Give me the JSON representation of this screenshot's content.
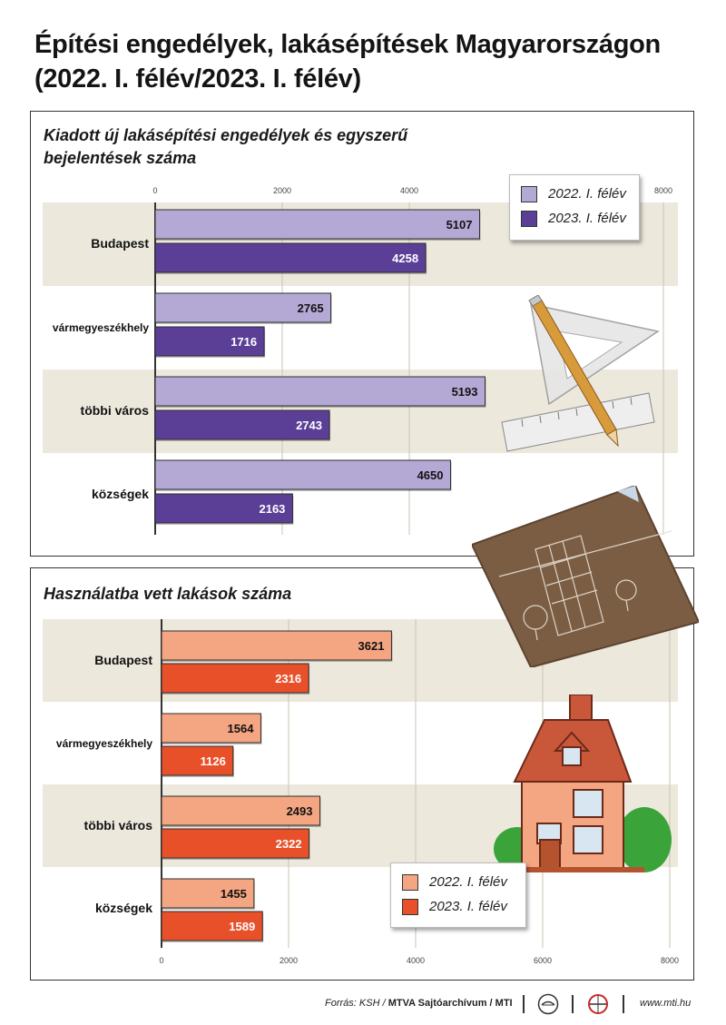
{
  "title_line1": "Építési engedélyek, lakásépítések Magyarországon",
  "title_line2": "(2022. I. félév/2023. I. félév)",
  "chart_data": [
    {
      "type": "bar",
      "orientation": "horizontal",
      "title": "Kiadott új lakásépítési engedélyek és egyszerű bejelentések száma",
      "categories": [
        "Budapest",
        "vármegyeszékhely",
        "többi város",
        "községek"
      ],
      "series": [
        {
          "name": "2022. I. félév",
          "values": [
            5107,
            2765,
            5193,
            4650
          ],
          "color": "#b4a9d5"
        },
        {
          "name": "2023. I. félév",
          "values": [
            4258,
            1716,
            2743,
            2163
          ],
          "color": "#5b3f97"
        }
      ],
      "xticks": [
        0,
        2000,
        4000,
        8000
      ],
      "xlim": [
        0,
        8000
      ],
      "legend": "top-right",
      "grid": true
    },
    {
      "type": "bar",
      "orientation": "horizontal",
      "title": "Használatba vett lakások száma",
      "categories": [
        "Budapest",
        "vármegyeszékhely",
        "többi város",
        "községek"
      ],
      "series": [
        {
          "name": "2022. I. félév",
          "values": [
            3621,
            1564,
            2493,
            1455
          ],
          "color": "#f4a582"
        },
        {
          "name": "2023. I. félév",
          "values": [
            2316,
            1126,
            2322,
            1589
          ],
          "color": "#e8502a"
        }
      ],
      "xticks": [
        0,
        2000,
        4000,
        6000,
        8000
      ],
      "xlim": [
        0,
        8000
      ],
      "legend": "bottom-right",
      "grid": true
    }
  ],
  "footer": {
    "source_plain": "Forrás: KSH / ",
    "source_bold": "MTVA Sajtóarchívum / MTI",
    "website": "www.mti.hu"
  },
  "colors": {
    "band": "#ece8dc",
    "grid": "#c9c3b3",
    "axis": "#333333"
  },
  "icons": [
    "pencil-ruler-icon",
    "blueprint-icon",
    "house-icon",
    "mtva-logo",
    "mti-logo"
  ]
}
